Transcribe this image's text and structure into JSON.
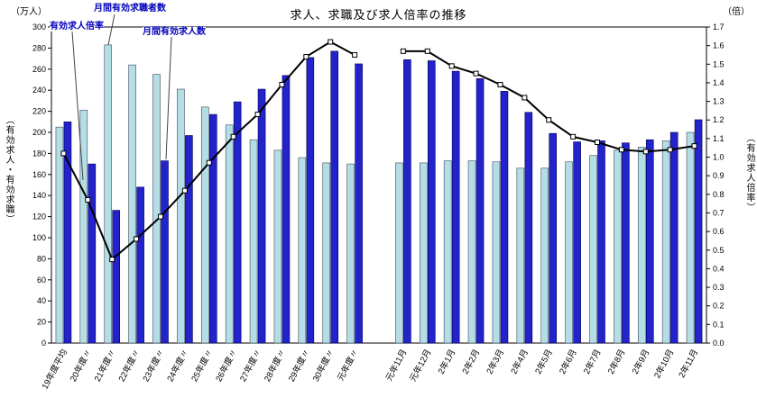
{
  "chart_data": {
    "type": "bar",
    "subtype": "grouped-bars-with-line",
    "title": "求人、求職及び求人倍率の推移",
    "left_axis": {
      "unit": "（万人）",
      "label": "（有効求人・有効求職）",
      "min": 0,
      "max": 300,
      "step": 20
    },
    "right_axis": {
      "unit": "（倍）",
      "label": "（有効求人倍率）",
      "min": 0,
      "max": 1.7,
      "step": 0.1
    },
    "annotations": {
      "seekers_label": "月間有効求職者数",
      "ratio_label": "有効求人倍率",
      "openings_label": "月間有効求人数"
    },
    "colors": {
      "seekers": "#b5dde6",
      "openings": "#2323cc",
      "ratio": "#000000"
    },
    "legend_position": "top-left-annotations",
    "grid": false,
    "gap_slots": 1,
    "groups": [
      {
        "name": "annual-averages",
        "categories": [
          "19年度平均",
          "20年度〃",
          "21年度〃",
          "22年度〃",
          "23年度〃",
          "24年度〃",
          "25年度〃",
          "26年度〃",
          "27年度〃",
          "28年度〃",
          "29年度〃",
          "30年度〃",
          "元年度〃"
        ],
        "seekers": [
          205,
          221,
          283,
          264,
          255,
          241,
          224,
          207,
          193,
          183,
          176,
          171,
          170
        ],
        "openings": [
          210,
          170,
          126,
          148,
          173,
          197,
          217,
          229,
          241,
          254,
          271,
          277,
          265
        ],
        "ratio": [
          1.02,
          0.77,
          0.45,
          0.56,
          0.68,
          0.82,
          0.97,
          1.11,
          1.23,
          1.39,
          1.54,
          1.62,
          1.55
        ]
      },
      {
        "name": "monthly",
        "categories": [
          "元年11月",
          "元年12月",
          "2年1月",
          "2年2月",
          "2年3月",
          "2年4月",
          "2年5月",
          "2年6月",
          "2年7月",
          "2年8月",
          "2年9月",
          "2年10月",
          "2年11月"
        ],
        "seekers": [
          171,
          171,
          173,
          173,
          172,
          166,
          166,
          172,
          178,
          183,
          186,
          192,
          200
        ],
        "openings": [
          269,
          268,
          258,
          251,
          239,
          219,
          199,
          191,
          192,
          190,
          193,
          200,
          212
        ],
        "ratio": [
          1.57,
          1.57,
          1.49,
          1.45,
          1.39,
          1.32,
          1.2,
          1.11,
          1.08,
          1.04,
          1.03,
          1.04,
          1.06
        ]
      }
    ]
  }
}
